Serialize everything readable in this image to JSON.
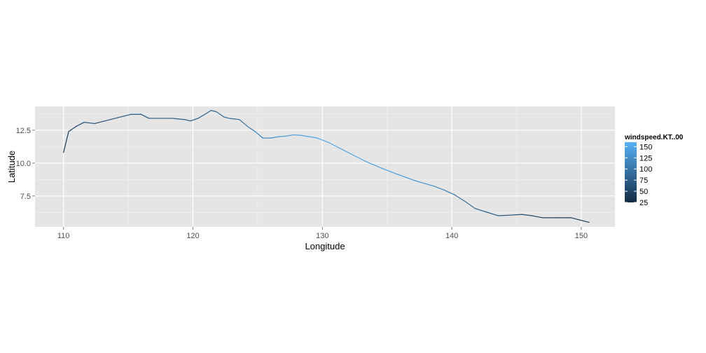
{
  "chart_data": {
    "type": "line",
    "xlabel": "Longitude",
    "ylabel": "Latitude",
    "xlim": [
      107.8,
      152.6
    ],
    "ylim": [
      5.15,
      14.3
    ],
    "x_ticks": [
      110,
      120,
      130,
      140,
      150
    ],
    "x_tick_labels": [
      "110",
      "120",
      "130",
      "140",
      "150"
    ],
    "y_ticks": [
      7.5,
      10.0,
      12.5
    ],
    "y_tick_labels": [
      "7.5",
      "10.0",
      "12.5"
    ],
    "grid": true,
    "panel_background": "#e5e5e5",
    "grid_major_color": "#ffffff",
    "grid_minor_color": "#f2f2f2",
    "color_scale": {
      "title": "windspeed.KT..00",
      "min": 25,
      "max": 160,
      "low_color": "#132b43",
      "high_color": "#56b1f7",
      "breaks": [
        25,
        50,
        75,
        100,
        125,
        150
      ],
      "break_labels": [
        "25",
        "50",
        "75",
        "100",
        "125",
        "150"
      ]
    },
    "legend_position": "right",
    "series": [
      {
        "x": [
          110.0,
          110.4,
          111.0,
          111.6,
          112.4,
          113.2,
          114.2,
          115.2,
          116.0,
          116.6,
          117.4,
          118.4,
          119.4,
          119.8,
          120.4,
          121.0,
          121.4,
          121.8,
          122.4,
          122.8,
          123.2,
          123.6,
          124.2,
          124.8,
          125.4,
          126.0,
          126.6,
          127.2,
          127.8,
          128.4,
          129.0,
          129.6,
          130.4,
          131.2,
          132.2,
          133.4,
          134.6,
          135.8,
          137.2,
          138.6,
          139.4,
          140.2,
          141.0,
          141.8,
          142.6,
          143.6,
          144.6,
          145.4,
          146.2,
          147.0,
          148.0,
          149.2,
          149.8,
          150.6
        ],
        "y": [
          10.8,
          12.4,
          12.8,
          13.1,
          13.0,
          13.2,
          13.45,
          13.7,
          13.7,
          13.4,
          13.4,
          13.4,
          13.3,
          13.2,
          13.4,
          13.75,
          14.0,
          13.9,
          13.5,
          13.4,
          13.35,
          13.3,
          12.8,
          12.4,
          11.9,
          11.9,
          12.0,
          12.05,
          12.15,
          12.1,
          12.0,
          11.9,
          11.6,
          11.2,
          10.7,
          10.1,
          9.6,
          9.15,
          8.65,
          8.25,
          7.95,
          7.6,
          7.1,
          6.55,
          6.3,
          6.0,
          6.05,
          6.1,
          6.0,
          5.85,
          5.85,
          5.85,
          5.7,
          5.5
        ],
        "windspeed": [
          35,
          45,
          55,
          60,
          65,
          65,
          70,
          70,
          70,
          70,
          70,
          70,
          70,
          70,
          75,
          80,
          80,
          80,
          85,
          85,
          90,
          90,
          100,
          110,
          120,
          125,
          130,
          135,
          140,
          140,
          145,
          150,
          150,
          150,
          150,
          145,
          140,
          140,
          130,
          125,
          115,
          105,
          95,
          85,
          75,
          70,
          65,
          60,
          55,
          50,
          45,
          40,
          40,
          35
        ]
      }
    ]
  }
}
